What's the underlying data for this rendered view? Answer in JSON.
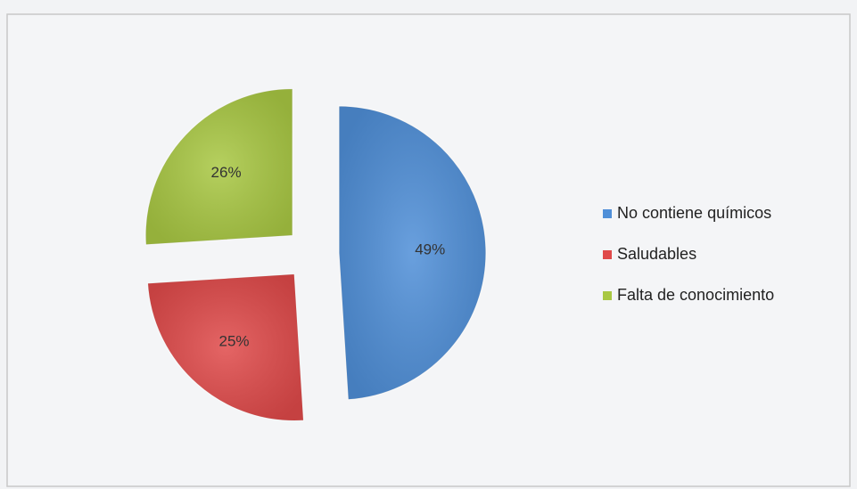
{
  "chart_data": {
    "type": "pie",
    "categories": [
      "No contiene químicos",
      "Saludables",
      "Falta de conocimiento"
    ],
    "values": [
      49,
      25,
      26
    ],
    "value_labels": [
      "49%",
      "25%",
      "26%"
    ],
    "colors": [
      "#4f8fd8",
      "#e04a4a",
      "#a9c843"
    ],
    "legend": "right"
  }
}
